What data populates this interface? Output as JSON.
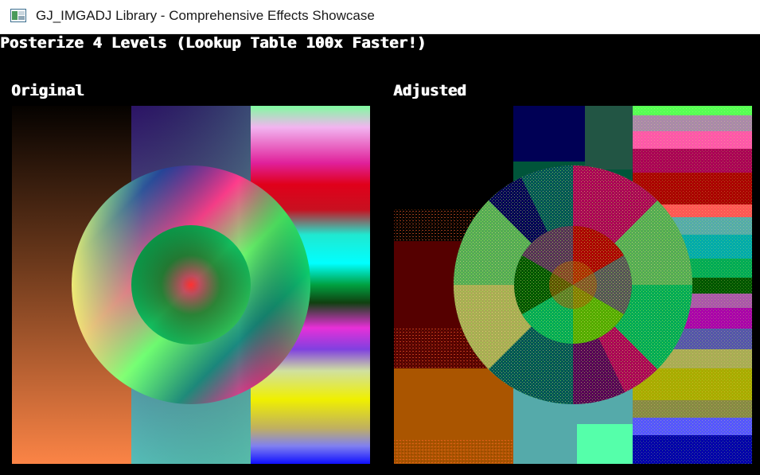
{
  "window": {
    "title": "GJ_IMGADJ Library - Comprehensive Effects Showcase",
    "icon": "app-window-icon"
  },
  "demo": {
    "heading": "Posterize 4 Levels (Lookup Table 100x Faster!)",
    "original_label": "Original",
    "adjusted_label": "Adjusted",
    "posterize_levels": 4
  },
  "colors": {
    "background": "#000000",
    "text": "#ffffff",
    "titlebar": "#ffffff"
  }
}
